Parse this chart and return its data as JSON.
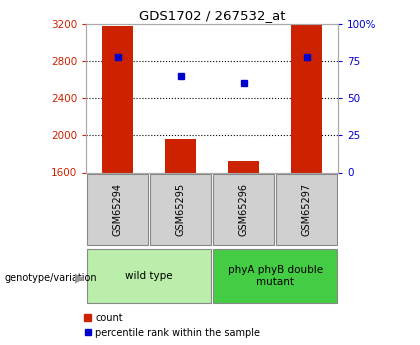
{
  "title": "GDS1702 / 267532_at",
  "samples": [
    "GSM65294",
    "GSM65295",
    "GSM65296",
    "GSM65297"
  ],
  "count_values": [
    3180,
    1960,
    1720,
    3200
  ],
  "percentile_values": [
    78,
    65,
    60,
    78
  ],
  "ylim_left": [
    1600,
    3200
  ],
  "ylim_right": [
    0,
    100
  ],
  "yticks_left": [
    1600,
    2000,
    2400,
    2800,
    3200
  ],
  "yticks_right": [
    0,
    25,
    50,
    75,
    100
  ],
  "bar_color": "#cc2200",
  "dot_color": "#0000cc",
  "bar_width": 0.5,
  "base_value": 1600,
  "grid_values": [
    2000,
    2400,
    2800
  ],
  "groups": [
    {
      "label": "wild type",
      "samples": [
        0,
        1
      ],
      "color": "#bbeeaa"
    },
    {
      "label": "phyA phyB double\nmutant",
      "samples": [
        2,
        3
      ],
      "color": "#44cc44"
    }
  ],
  "group_label": "genotype/variation",
  "legend_count": "count",
  "legend_percentile": "percentile rank within the sample",
  "sample_box_color": "#d0d0d0"
}
